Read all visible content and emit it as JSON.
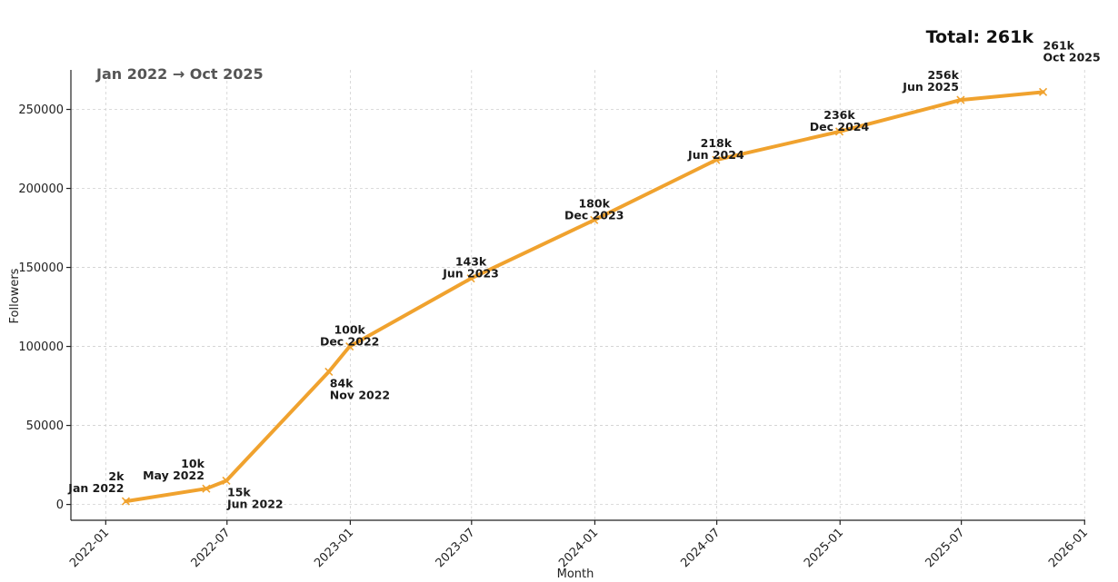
{
  "chart_data": {
    "type": "line",
    "subtitle": "Jan 2022 → Oct 2025",
    "total_label": "Total: 261k",
    "xlabel": "Month",
    "ylabel": "Followers",
    "color": "#f0a22e",
    "marker": "x",
    "grid": true,
    "xlim": [
      "2021-11-10",
      "2026-01-02"
    ],
    "ylim": [
      -10000,
      275000
    ],
    "x_ticks": [
      "2022-01",
      "2022-07",
      "2023-01",
      "2023-07",
      "2024-01",
      "2024-07",
      "2025-01",
      "2025-07",
      "2026-01"
    ],
    "y_ticks": [
      0,
      50000,
      100000,
      150000,
      200000,
      250000
    ],
    "x": [
      "2022-01-31",
      "2022-05-31",
      "2022-06-30",
      "2022-11-30",
      "2022-12-31",
      "2023-06-30",
      "2023-12-31",
      "2024-06-30",
      "2024-12-31",
      "2025-06-30",
      "2025-10-31"
    ],
    "values": [
      2000,
      10000,
      15000,
      84000,
      100000,
      143000,
      180000,
      218000,
      236000,
      256000,
      261000
    ],
    "annotations": [
      {
        "value": "2k",
        "date": "Jan 2022",
        "pos": "above-left"
      },
      {
        "value": "10k",
        "date": "May 2022",
        "pos": "above-left"
      },
      {
        "value": "15k",
        "date": "Jun 2022",
        "pos": "below-right"
      },
      {
        "value": "84k",
        "date": "Nov 2022",
        "pos": "below-right"
      },
      {
        "value": "100k",
        "date": "Dec 2022",
        "pos": "above"
      },
      {
        "value": "143k",
        "date": "Jun 2023",
        "pos": "above"
      },
      {
        "value": "180k",
        "date": "Dec 2023",
        "pos": "above"
      },
      {
        "value": "218k",
        "date": "Jun 2024",
        "pos": "above"
      },
      {
        "value": "236k",
        "date": "Dec 2024",
        "pos": "above"
      },
      {
        "value": "256k",
        "date": "Jun 2025",
        "pos": "above-left"
      },
      {
        "value": "261k",
        "date": "Oct 2025",
        "pos": "above-far"
      }
    ]
  }
}
